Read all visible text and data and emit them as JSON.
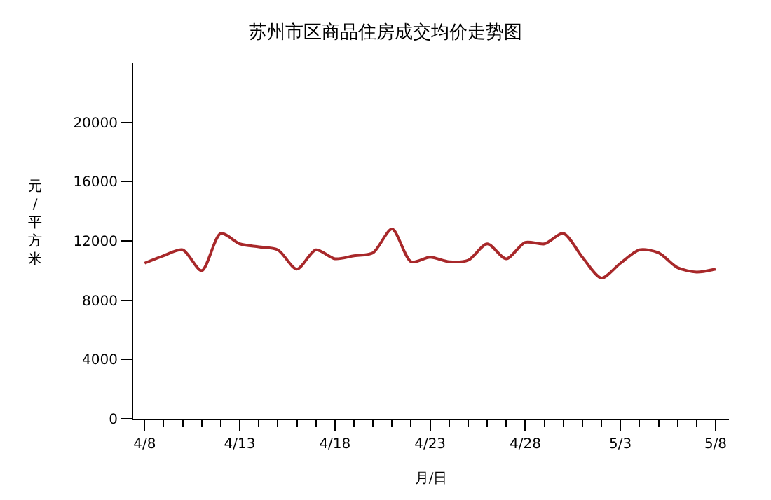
{
  "chart_data": {
    "type": "line",
    "title": "苏州市区商品住房成交均价走势图",
    "xlabel": "月/日",
    "ylabel": "元/平方米",
    "categories": [
      "4/8",
      null,
      null,
      null,
      null,
      "4/13",
      null,
      null,
      null,
      null,
      "4/18",
      null,
      null,
      null,
      null,
      "4/23",
      null,
      null,
      null,
      null,
      "4/28",
      null,
      null,
      null,
      null,
      "5/3",
      null,
      null,
      null,
      null,
      "5/8"
    ],
    "series": [
      {
        "color": "#a8282a",
        "values": [
          10500,
          11000,
          11400,
          10000,
          12500,
          11800,
          11600,
          11400,
          10100,
          11400,
          10800,
          11000,
          11200,
          12800,
          10600,
          10900,
          10600,
          10700,
          11800,
          10800,
          11900,
          11800,
          12500,
          10900,
          9500,
          10500,
          11400,
          11200,
          10200,
          9900,
          10100
        ]
      }
    ],
    "ylim": [
      0,
      24000
    ],
    "yticks": [
      0,
      4000,
      8000,
      12000,
      16000,
      20000
    ],
    "legend": false,
    "marker": "none",
    "line_style": "solid"
  }
}
